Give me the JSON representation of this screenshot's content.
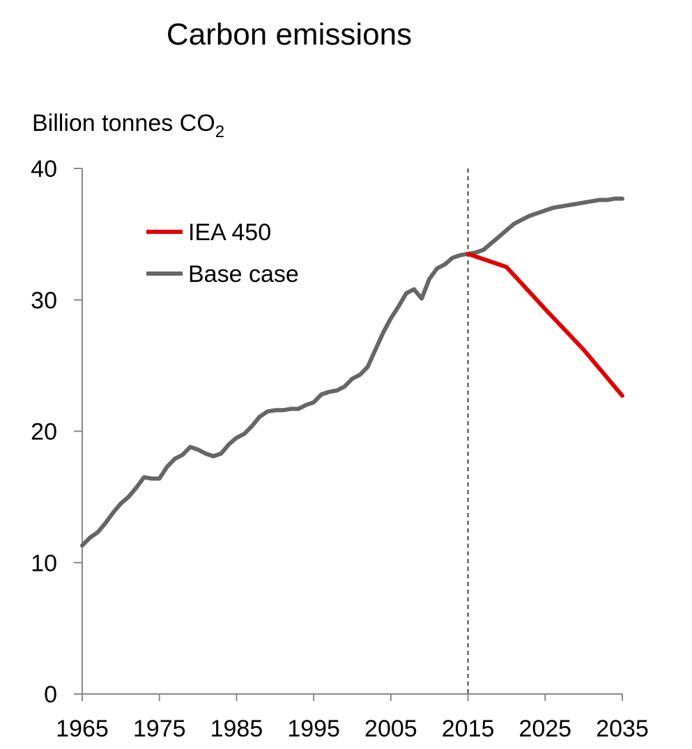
{
  "chart_data": {
    "type": "line",
    "title": "Carbon emissions",
    "ylabel_main": "Billion tonnes CO",
    "ylabel_sub": "2",
    "ylim": [
      0,
      40
    ],
    "xlim": [
      1965,
      2035
    ],
    "yticks": [
      "0",
      "10",
      "20",
      "30",
      "40"
    ],
    "xticks": [
      "1965",
      "1975",
      "1985",
      "1995",
      "2005",
      "2015",
      "2025",
      "2035"
    ],
    "reference_line_x": 2015,
    "legend_position": "top-left",
    "grid": false,
    "series": [
      {
        "name": "IEA 450",
        "color": "#e00000",
        "x": [
          2015,
          2020,
          2025,
          2030,
          2035
        ],
        "y": [
          33.5,
          32.5,
          29.3,
          26.2,
          22.7
        ]
      },
      {
        "name": "Base case",
        "color": "#666666",
        "x": [
          1965,
          1966,
          1967,
          1968,
          1969,
          1970,
          1971,
          1972,
          1973,
          1974,
          1975,
          1976,
          1977,
          1978,
          1979,
          1980,
          1981,
          1982,
          1983,
          1984,
          1985,
          1986,
          1987,
          1988,
          1989,
          1990,
          1991,
          1992,
          1993,
          1994,
          1995,
          1996,
          1997,
          1998,
          1999,
          2000,
          2001,
          2002,
          2003,
          2004,
          2005,
          2006,
          2007,
          2008,
          2009,
          2010,
          2011,
          2012,
          2013,
          2014,
          2015,
          2016,
          2017,
          2018,
          2019,
          2020,
          2021,
          2022,
          2023,
          2024,
          2025,
          2026,
          2027,
          2028,
          2029,
          2030,
          2031,
          2032,
          2033,
          2034,
          2035
        ],
        "y": [
          11.3,
          11.9,
          12.3,
          13.0,
          13.8,
          14.5,
          15.0,
          15.7,
          16.5,
          16.4,
          16.4,
          17.3,
          17.9,
          18.2,
          18.8,
          18.6,
          18.3,
          18.1,
          18.3,
          19.0,
          19.5,
          19.8,
          20.4,
          21.1,
          21.5,
          21.6,
          21.6,
          21.7,
          21.7,
          22.0,
          22.2,
          22.8,
          23.0,
          23.1,
          23.4,
          24.0,
          24.3,
          24.9,
          26.2,
          27.5,
          28.6,
          29.5,
          30.5,
          30.8,
          30.1,
          31.6,
          32.4,
          32.7,
          33.2,
          33.4,
          33.5,
          33.6,
          33.8,
          34.3,
          34.8,
          35.3,
          35.8,
          36.1,
          36.4,
          36.6,
          36.8,
          37.0,
          37.1,
          37.2,
          37.3,
          37.4,
          37.5,
          37.6,
          37.6,
          37.7,
          37.7
        ]
      }
    ]
  }
}
